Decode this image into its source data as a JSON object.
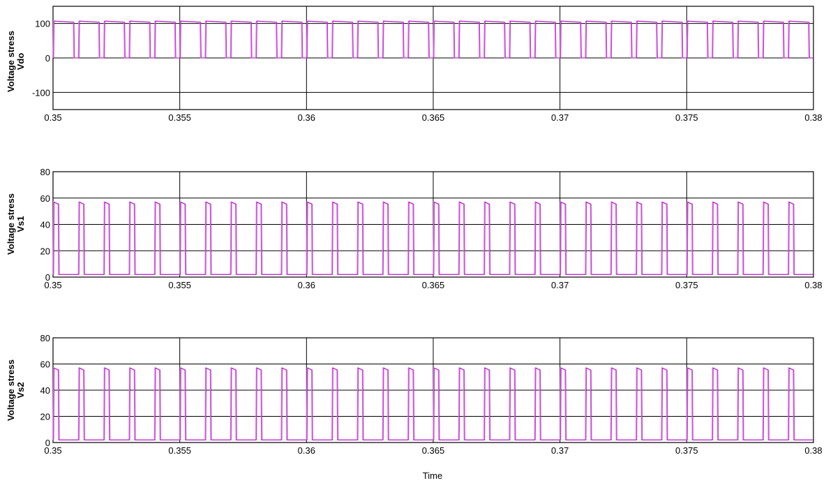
{
  "colors": {
    "dark_trace": "#a000b4",
    "light_trace": "#e26cf0",
    "grid": "#000000"
  },
  "chart_data": [
    {
      "type": "line",
      "ylabel_lines": [
        "Voltage stress",
        "Vdo"
      ],
      "xlabel": "",
      "xlim": [
        0.35,
        0.38
      ],
      "ylim": [
        -150,
        150
      ],
      "yticks": [
        100,
        0,
        -100
      ],
      "xticks": [
        "0.35",
        "0.355",
        "0.36",
        "0.365",
        "0.37",
        "0.375",
        "0.38"
      ],
      "grid": true,
      "period": 0.001,
      "on_time": 0.0008,
      "series": [
        {
          "high": 107,
          "low": 0
        }
      ]
    },
    {
      "type": "line",
      "ylabel_lines": [
        "Voltage stress",
        "Vs1"
      ],
      "xlabel": "",
      "xlim": [
        0.35,
        0.38
      ],
      "ylim": [
        0,
        80
      ],
      "yticks": [
        80,
        60,
        40,
        20,
        0
      ],
      "xticks": [
        "0.35",
        "0.355",
        "0.36",
        "0.365",
        "0.37",
        "0.375",
        "0.38"
      ],
      "grid": true,
      "period": 0.001,
      "on_time": 0.0002,
      "series": [
        {
          "high": 57,
          "low": 2
        }
      ]
    },
    {
      "type": "line",
      "ylabel_lines": [
        "Voltage stress",
        "Vs2"
      ],
      "xlabel": "Time",
      "xlim": [
        0.35,
        0.38
      ],
      "ylim": [
        0,
        80
      ],
      "yticks": [
        80,
        60,
        40,
        20,
        0
      ],
      "xticks": [
        "0.35",
        "0.355",
        "0.36",
        "0.365",
        "0.37",
        "0.375",
        "0.38"
      ],
      "grid": true,
      "period": 0.001,
      "on_time": 0.0002,
      "series": [
        {
          "high": 57,
          "low": 2
        }
      ]
    }
  ]
}
